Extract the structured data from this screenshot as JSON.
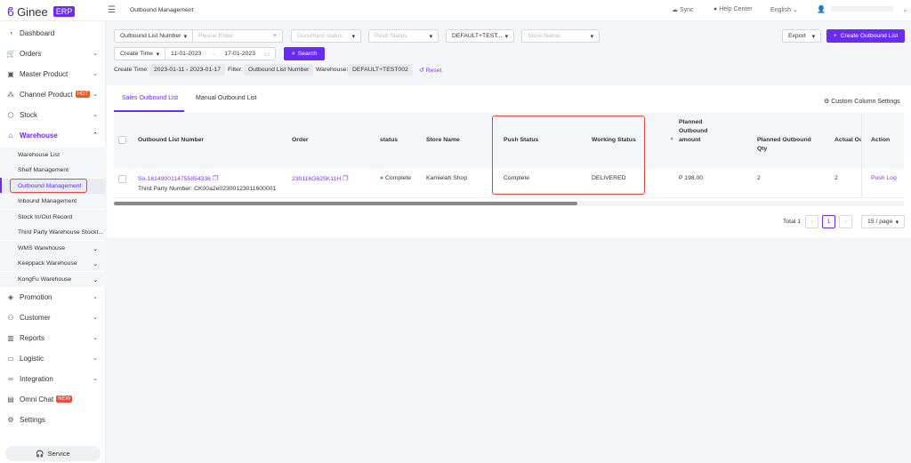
{
  "brand": {
    "name": "Ginee",
    "tag": "ERP",
    "accent": "#6a2cf5"
  },
  "header": {
    "page_title": "Outbound Management",
    "sync": "Sync",
    "help": "Help Center",
    "language": "English"
  },
  "sidebar": {
    "items": [
      {
        "label": "Dashboard",
        "icon": "dashboard-icon"
      },
      {
        "label": "Orders",
        "icon": "cart-icon"
      },
      {
        "label": "Master Product",
        "icon": "box-icon"
      },
      {
        "label": "Channel Product",
        "icon": "channel-icon",
        "badge": "HOT"
      },
      {
        "label": "Stock",
        "icon": "cube-icon"
      },
      {
        "label": "Warehouse",
        "icon": "warehouse-icon"
      },
      {
        "label": "Promotion",
        "icon": "tag-icon"
      },
      {
        "label": "Customer",
        "icon": "users-icon"
      },
      {
        "label": "Reports",
        "icon": "chart-icon"
      },
      {
        "label": "Logistic",
        "icon": "truck-icon"
      },
      {
        "label": "Integration",
        "icon": "link-icon"
      },
      {
        "label": "Omni Chat",
        "icon": "chat-icon",
        "badge": "NEW"
      },
      {
        "label": "Settings",
        "icon": "gear-icon"
      }
    ],
    "warehouse_sub": [
      "Warehouse List",
      "Shelf Management",
      "Outbound Management",
      "Inbound Management",
      "Stock In/Out Record",
      "Third Party Warehouse Stockt...",
      "WMS Warehouse",
      "Keeppack Warehouse",
      "KongFu Warehouse"
    ],
    "service": "Service"
  },
  "filters": {
    "search_type": "Outbound List Number",
    "search_placeholder": "Please Enter",
    "document_status": "Document status",
    "push_status": "Push Status",
    "warehouse": "DEFAULT+TEST...",
    "store_name": "Store Name",
    "time_type": "Create Time",
    "date_from": "11-01-2023",
    "date_to": "17-01-2023",
    "search_btn": "Search",
    "export": "Export",
    "create": "Create Outbound List"
  },
  "applied": {
    "create_time_label": "Create Time:",
    "create_time": "2023-01-11 - 2023-01-17",
    "filter_label": "Filter:",
    "filter": "Outbound List Number",
    "warehouse_label": "Warehouse:",
    "warehouse": "DEFAULT+TEST002",
    "reset": "Reset"
  },
  "tabs": [
    "Sales Outbound List",
    "Manual Outbound List"
  ],
  "custom_columns": "Custom Column Settings",
  "table": {
    "columns": [
      "Outbound List Number",
      "Order",
      "status",
      "Store Name",
      "Push Status",
      "Working Status",
      "Planned Outbound amount",
      "Planned Outbound Qty",
      "Actual Out",
      "Action"
    ],
    "rows": [
      {
        "number": "So-1614900114755854336",
        "third_party": "Third Party Number:  CK00a2e02300123011600001",
        "order": "230116G625K11H",
        "status": "Complete",
        "store": "Kamielah Shop",
        "push_status": "Complete",
        "working_status": "DELIVERED",
        "amount": "P 198.00",
        "planned_qty": "2",
        "actual_qty": "2",
        "action": "Push Log"
      }
    ]
  },
  "pagination": {
    "total": "Total 1",
    "page": "1",
    "per_page": "15 / page"
  }
}
